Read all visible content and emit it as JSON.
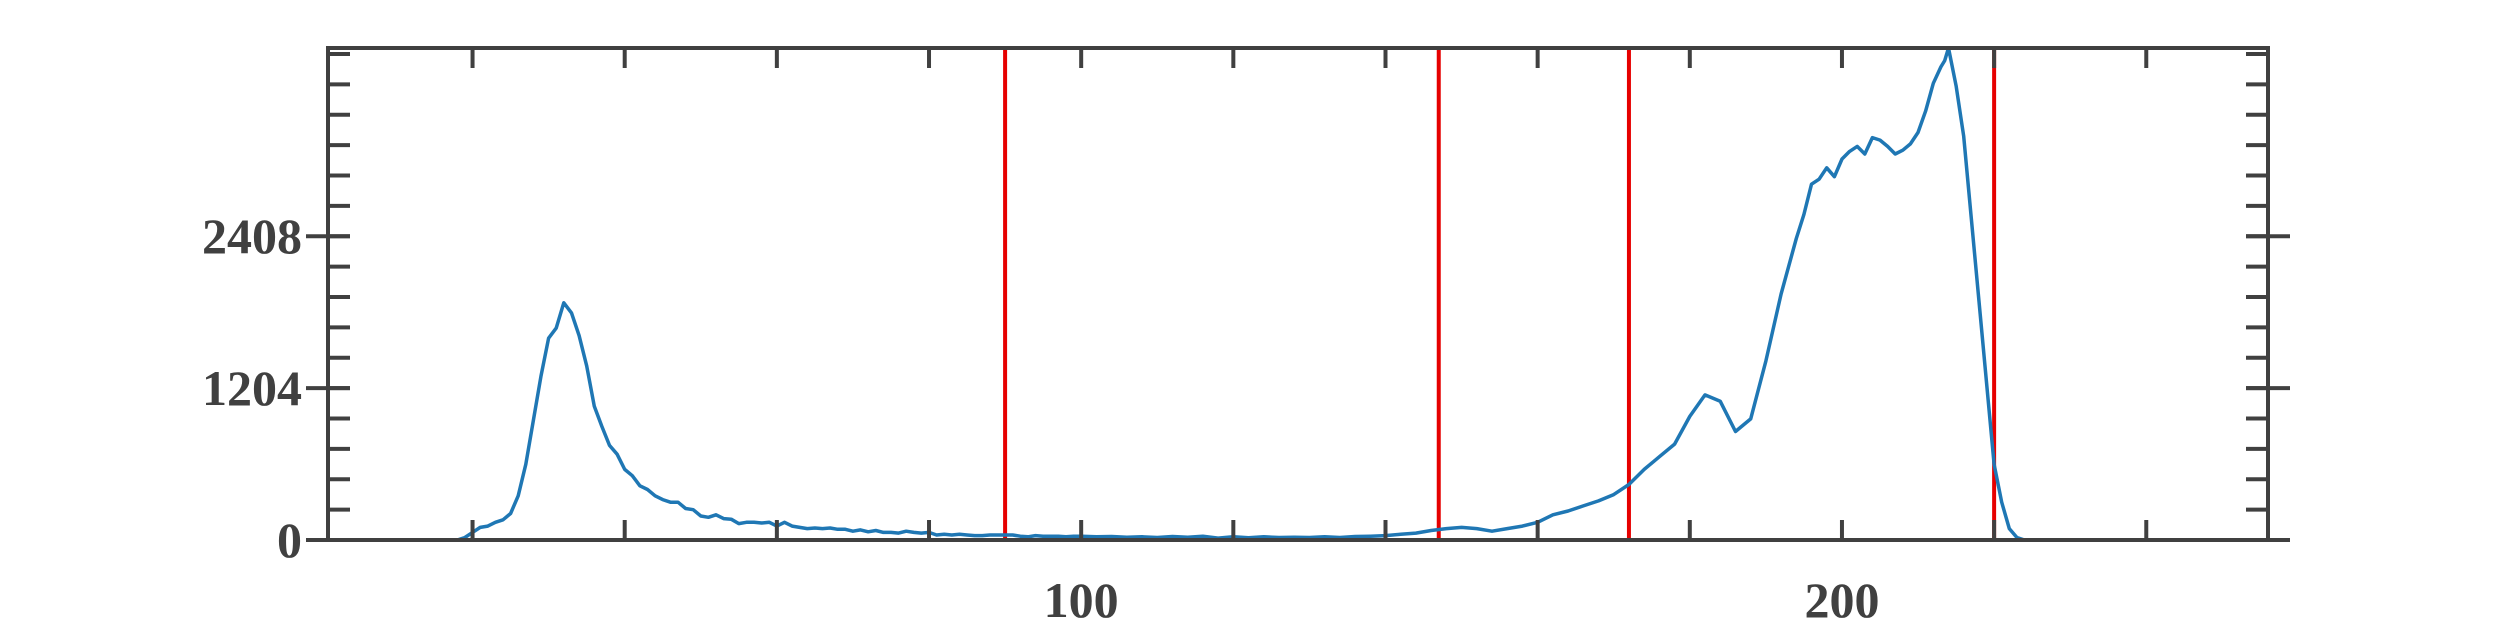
{
  "chart_data": {
    "type": "line",
    "title": "",
    "xlabel": "",
    "ylabel": "",
    "xlim": [
      1,
      256
    ],
    "ylim": [
      0,
      3900
    ],
    "x_ticks": [
      20,
      40,
      60,
      80,
      100,
      120,
      140,
      160,
      180,
      200,
      220,
      240
    ],
    "x_tick_labels": [
      {
        "value": 100,
        "label": "100"
      },
      {
        "value": 200,
        "label": "200"
      }
    ],
    "y_major_ticks": [
      0,
      1204,
      2408
    ],
    "y_tick_labels": [
      {
        "value": 0,
        "label": "0"
      },
      {
        "value": 1204,
        "label": "1204"
      },
      {
        "value": 2408,
        "label": "2408"
      }
    ],
    "y_minor_step": 240.8,
    "grid": false,
    "thresholds": [
      90,
      147,
      172,
      220
    ],
    "series": [
      {
        "color": "#1f77b4",
        "points": [
          [
            1,
            0
          ],
          [
            18,
            0
          ],
          [
            19,
            20
          ],
          [
            20,
            60
          ],
          [
            21,
            100
          ],
          [
            22,
            110
          ],
          [
            23,
            140
          ],
          [
            24,
            160
          ],
          [
            25,
            210
          ],
          [
            26,
            350
          ],
          [
            27,
            600
          ],
          [
            28,
            950
          ],
          [
            29,
            1300
          ],
          [
            30,
            1600
          ],
          [
            31,
            1680
          ],
          [
            32,
            1880
          ],
          [
            33,
            1800
          ],
          [
            34,
            1620
          ],
          [
            35,
            1380
          ],
          [
            36,
            1060
          ],
          [
            37,
            900
          ],
          [
            38,
            750
          ],
          [
            39,
            680
          ],
          [
            40,
            560
          ],
          [
            41,
            510
          ],
          [
            42,
            430
          ],
          [
            43,
            400
          ],
          [
            44,
            350
          ],
          [
            45,
            320
          ],
          [
            46,
            300
          ],
          [
            47,
            300
          ],
          [
            48,
            250
          ],
          [
            49,
            240
          ],
          [
            50,
            190
          ],
          [
            51,
            180
          ],
          [
            52,
            200
          ],
          [
            53,
            170
          ],
          [
            54,
            165
          ],
          [
            55,
            130
          ],
          [
            56,
            140
          ],
          [
            57,
            140
          ],
          [
            58,
            135
          ],
          [
            59,
            140
          ],
          [
            60,
            110
          ],
          [
            61,
            140
          ],
          [
            62,
            110
          ],
          [
            63,
            100
          ],
          [
            64,
            90
          ],
          [
            65,
            95
          ],
          [
            66,
            90
          ],
          [
            67,
            95
          ],
          [
            68,
            85
          ],
          [
            69,
            85
          ],
          [
            70,
            70
          ],
          [
            71,
            80
          ],
          [
            72,
            65
          ],
          [
            73,
            75
          ],
          [
            74,
            60
          ],
          [
            75,
            60
          ],
          [
            76,
            55
          ],
          [
            77,
            70
          ],
          [
            78,
            60
          ],
          [
            79,
            55
          ],
          [
            80,
            60
          ],
          [
            81,
            40
          ],
          [
            82,
            45
          ],
          [
            83,
            40
          ],
          [
            84,
            45
          ],
          [
            85,
            40
          ],
          [
            86,
            35
          ],
          [
            87,
            35
          ],
          [
            88,
            40
          ],
          [
            89,
            40
          ],
          [
            90,
            40
          ],
          [
            91,
            40
          ],
          [
            92,
            30
          ],
          [
            93,
            25
          ],
          [
            94,
            35
          ],
          [
            95,
            30
          ],
          [
            96,
            30
          ],
          [
            97,
            30
          ],
          [
            98,
            25
          ],
          [
            99,
            30
          ],
          [
            100,
            30
          ],
          [
            102,
            25
          ],
          [
            104,
            28
          ],
          [
            106,
            22
          ],
          [
            108,
            25
          ],
          [
            110,
            20
          ],
          [
            112,
            28
          ],
          [
            114,
            22
          ],
          [
            116,
            30
          ],
          [
            118,
            15
          ],
          [
            120,
            25
          ],
          [
            122,
            18
          ],
          [
            124,
            25
          ],
          [
            126,
            20
          ],
          [
            128,
            22
          ],
          [
            130,
            20
          ],
          [
            132,
            25
          ],
          [
            134,
            20
          ],
          [
            136,
            28
          ],
          [
            138,
            30
          ],
          [
            140,
            35
          ],
          [
            142,
            45
          ],
          [
            144,
            55
          ],
          [
            146,
            75
          ],
          [
            148,
            90
          ],
          [
            150,
            100
          ],
          [
            152,
            90
          ],
          [
            154,
            70
          ],
          [
            156,
            90
          ],
          [
            158,
            110
          ],
          [
            160,
            140
          ],
          [
            162,
            200
          ],
          [
            164,
            230
          ],
          [
            166,
            270
          ],
          [
            168,
            310
          ],
          [
            170,
            360
          ],
          [
            172,
            440
          ],
          [
            174,
            560
          ],
          [
            176,
            660
          ],
          [
            178,
            760
          ],
          [
            180,
            980
          ],
          [
            182,
            1150
          ],
          [
            184,
            1100
          ],
          [
            186,
            860
          ],
          [
            188,
            960
          ],
          [
            190,
            1420
          ],
          [
            192,
            1950
          ],
          [
            194,
            2390
          ],
          [
            195,
            2580
          ],
          [
            196,
            2820
          ],
          [
            197,
            2860
          ],
          [
            198,
            2950
          ],
          [
            199,
            2880
          ],
          [
            200,
            3020
          ],
          [
            201,
            3080
          ],
          [
            202,
            3120
          ],
          [
            203,
            3060
          ],
          [
            204,
            3190
          ],
          [
            205,
            3170
          ],
          [
            206,
            3120
          ],
          [
            207,
            3060
          ],
          [
            208,
            3090
          ],
          [
            209,
            3140
          ],
          [
            210,
            3230
          ],
          [
            211,
            3400
          ],
          [
            212,
            3620
          ],
          [
            213,
            3750
          ],
          [
            213.5,
            3800
          ],
          [
            214,
            3900
          ],
          [
            215,
            3600
          ],
          [
            216,
            3200
          ],
          [
            217,
            2550
          ],
          [
            218,
            1900
          ],
          [
            219,
            1250
          ],
          [
            220,
            600
          ],
          [
            221,
            300
          ],
          [
            222,
            90
          ],
          [
            223,
            20
          ],
          [
            224,
            0
          ],
          [
            256,
            0
          ]
        ]
      }
    ]
  },
  "colors": {
    "line": "#1f77b4",
    "threshold": "#e60000",
    "axis": "#404040"
  }
}
